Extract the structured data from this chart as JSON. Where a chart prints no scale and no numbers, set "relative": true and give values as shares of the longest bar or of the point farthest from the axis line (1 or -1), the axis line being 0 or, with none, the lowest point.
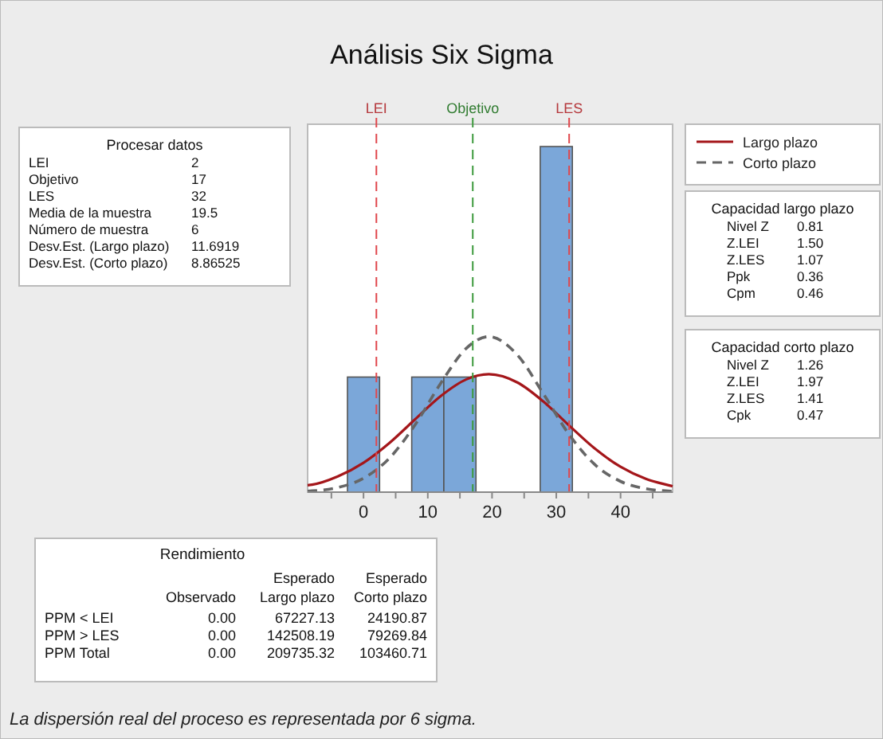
{
  "chart_data": [
    {
      "type": "histogram",
      "title": "Análisis Six Sigma",
      "relative": true,
      "bins": [
        -2.5,
        2.5,
        7.5,
        12.5,
        17.5,
        22.5,
        27.5,
        32.5
      ],
      "values": [
        0.333,
        0,
        0.333,
        0.333,
        0,
        0,
        1
      ],
      "color": "#7ba7d9",
      "series": [
        {
          "type": "line",
          "name": "Largo plazo",
          "color": "#a4161a",
          "line_style": "solid",
          "x": [
            -8.7,
            -8,
            -4,
            0,
            4,
            8,
            12,
            16,
            19.5,
            24,
            28,
            32,
            36,
            40,
            44,
            48,
            48.1
          ],
          "values": [
            0.02,
            0.0215,
            0.0453,
            0.0849,
            0.1417,
            0.2103,
            0.2777,
            0.3263,
            0.3412,
            0.3168,
            0.2619,
            0.1927,
            0.126,
            0.0734,
            0.038,
            0.0175,
            0.017
          ]
        },
        {
          "type": "line",
          "name": "Corto plazo",
          "color": "#666666",
          "line_style": "dashed",
          "x": [
            -8.7,
            -8,
            -4,
            0,
            4,
            8,
            12,
            16,
            19.5,
            24,
            28,
            32,
            36,
            40,
            44,
            48,
            48.1
          ],
          "values": [
            0.003,
            0.0037,
            0.0134,
            0.0401,
            0.0977,
            0.1941,
            0.3146,
            0.4163,
            0.45,
            0.3956,
            0.2842,
            0.1665,
            0.0797,
            0.0311,
            0.0099,
            0.0026,
            0.0025
          ]
        }
      ],
      "xlim": [
        -8.7,
        48.1
      ],
      "xticks": [
        {
          "value": -5,
          "label": null
        },
        0,
        {
          "value": 5,
          "label": null
        },
        10,
        {
          "value": 15,
          "label": null
        },
        20,
        {
          "value": 25,
          "label": null
        },
        30,
        {
          "value": 35,
          "label": null
        },
        40,
        {
          "value": 45,
          "label": null
        }
      ],
      "ref_lines": [
        {
          "axis": "x",
          "value": 2,
          "label": "LEI",
          "color": "#e0474c",
          "line_style": "dashed"
        },
        {
          "axis": "x",
          "value": 17,
          "label": "Objetivo",
          "color": "#3d9a3d",
          "line_style": "dashed"
        },
        {
          "axis": "x",
          "value": 32,
          "label": "LES",
          "color": "#e0474c",
          "line_style": "dashed"
        }
      ],
      "legend": "right",
      "grid": false,
      "annotations": [
        "La dispersión real del proceso es representada por 6 sigma."
      ]
    },
    {
      "type": "other",
      "title": "Procesar datos",
      "categories": [
        "LEI",
        "Objetivo",
        "LES",
        "Media de la muestra",
        "Número de muestra",
        "Desv.Est. (Largo plazo)",
        "Desv.Est. (Corto plazo)"
      ],
      "value_labels": [
        "2",
        "17",
        "32",
        "19.5",
        "6",
        "11.6919",
        "8.86525"
      ]
    },
    {
      "type": "other",
      "title": "Capacidad largo plazo",
      "categories": [
        "Nivel Z",
        "Z.LEI",
        "Z.LES",
        "Ppk",
        "Cpm"
      ],
      "value_labels": [
        "0.81",
        "1.50",
        "1.07",
        "0.36",
        "0.46"
      ]
    },
    {
      "type": "other",
      "title": "Capacidad corto plazo",
      "categories": [
        "Nivel Z",
        "Z.LEI",
        "Z.LES",
        "Cpk"
      ],
      "value_labels": [
        "1.26",
        "1.97",
        "1.41",
        "0.47"
      ]
    },
    {
      "type": "other",
      "title": "Rendimiento",
      "categories": [
        "PPM < LEI",
        "PPM > LES",
        "PPM Total"
      ],
      "series": [
        {
          "name": "Observado",
          "values": [
            0,
            0,
            0
          ],
          "value_labels": [
            "0.00",
            "0.00",
            "0.00"
          ]
        },
        {
          "name": "Esperado Largo plazo",
          "values": [
            67227.13,
            142508.19,
            209735.32
          ],
          "value_labels": [
            "67227.13",
            "142508.19",
            "209735.32"
          ]
        },
        {
          "name": "Esperado Corto plazo",
          "values": [
            24190.87,
            79269.84,
            103460.71
          ],
          "value_labels": [
            "24190.87",
            "79269.84",
            "103460.71"
          ]
        }
      ]
    }
  ]
}
